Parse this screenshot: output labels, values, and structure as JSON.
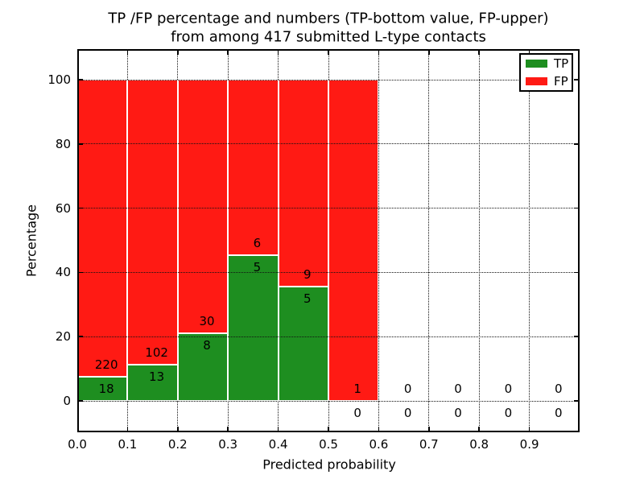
{
  "chart_data": {
    "type": "bar",
    "stacked": true,
    "title_line1": "TP /FP percentage and numbers (TP-bottom value, FP-upper)",
    "title_line2": "from among 417 submitted L-type contacts",
    "total_submitted_contacts": 417,
    "xlabel": "Predicted probability",
    "ylabel": "Percentage",
    "bin_edges": [
      0.0,
      0.1,
      0.2,
      0.3,
      0.4,
      0.5,
      0.6,
      0.7,
      0.8,
      0.9,
      1.0
    ],
    "x_tick_labels": [
      "0.0",
      "0.1",
      "0.2",
      "0.3",
      "0.4",
      "0.5",
      "0.6",
      "0.7",
      "0.8",
      "0.9"
    ],
    "y_ticks": [
      0,
      20,
      40,
      60,
      80,
      100
    ],
    "y_tick_labels": [
      "0",
      "20",
      "40",
      "60",
      "80",
      "100"
    ],
    "xlim": [
      0.0,
      1.0
    ],
    "ylim": [
      -9.6,
      109.5
    ],
    "grid": "dotted",
    "legend_position": "upper right",
    "series": [
      {
        "name": "TP",
        "color": "#1e8e20",
        "counts": [
          18,
          13,
          8,
          5,
          5,
          0,
          0,
          0,
          0,
          0
        ]
      },
      {
        "name": "FP",
        "color": "#ff1a14",
        "counts": [
          220,
          102,
          30,
          6,
          9,
          1,
          0,
          0,
          0,
          0
        ]
      }
    ],
    "tp_percent_of_bin": [
      7.56,
      11.3,
      21.05,
      45.45,
      35.71,
      0.0,
      0.0,
      0.0,
      0.0,
      0.0
    ],
    "bin_total_percent": [
      100,
      100,
      100,
      100,
      100,
      100,
      0,
      0,
      0,
      0
    ]
  }
}
